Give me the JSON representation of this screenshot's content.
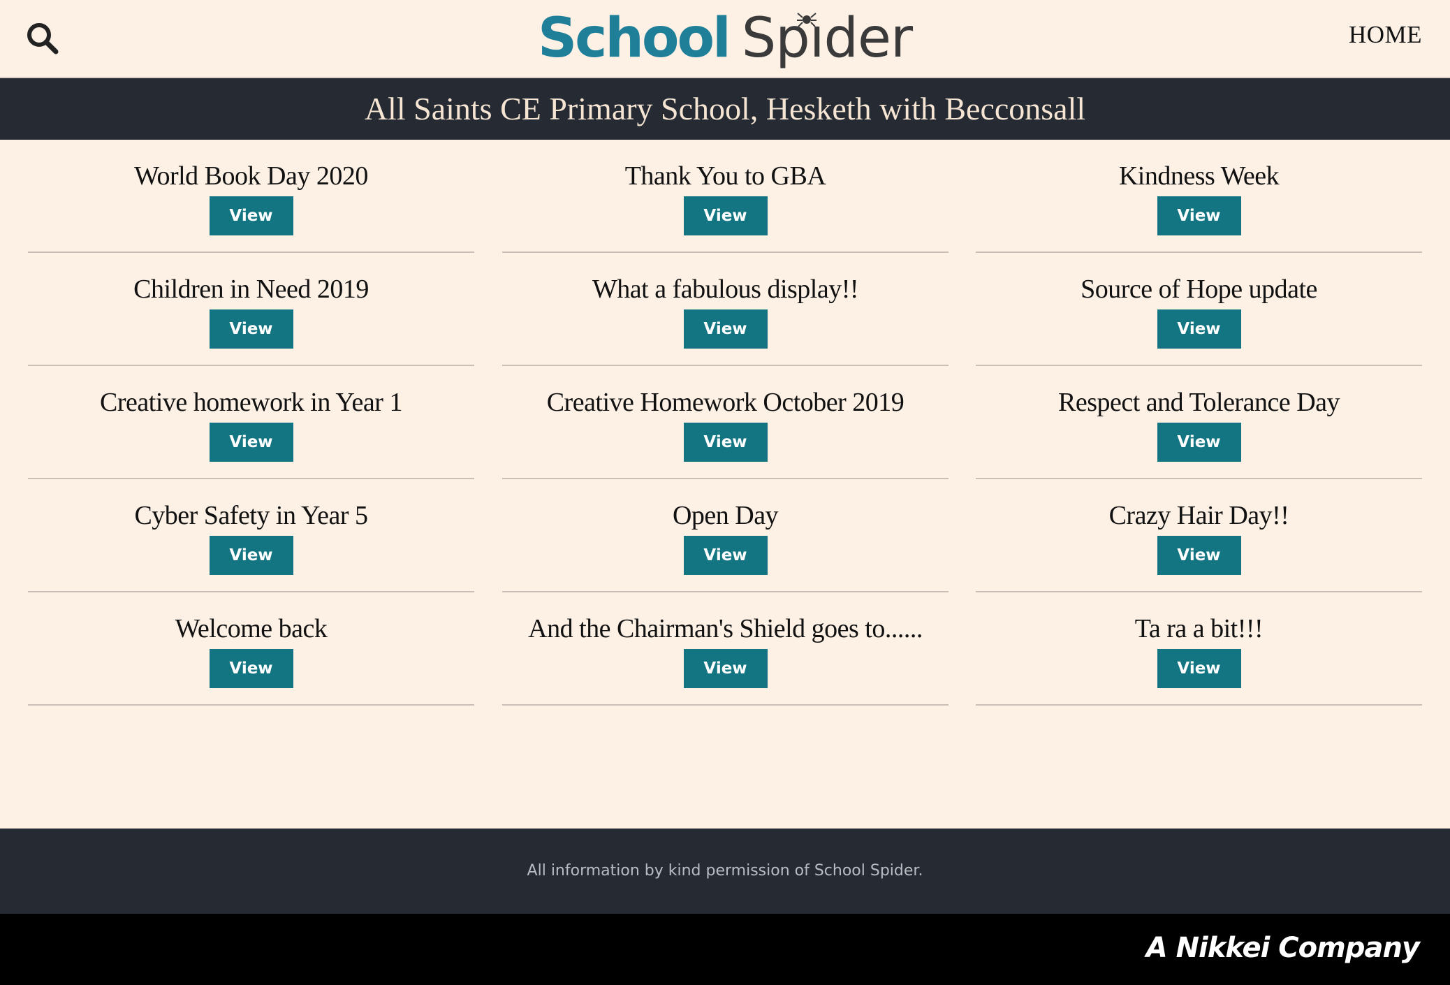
{
  "header": {
    "logo_part1": "School",
    "logo_part2": "Spıder",
    "home_label": "HOME",
    "search_icon": "search-icon"
  },
  "banner": {
    "school_name": "All Saints CE Primary School, Hesketh with Becconsall"
  },
  "posts": [
    {
      "title": "World Book Day 2020",
      "button": "View"
    },
    {
      "title": "Thank You to GBA",
      "button": "View"
    },
    {
      "title": "Kindness Week",
      "button": "View"
    },
    {
      "title": "Children in Need 2019",
      "button": "View"
    },
    {
      "title": "What a fabulous display!!",
      "button": "View"
    },
    {
      "title": "Source of Hope update",
      "button": "View"
    },
    {
      "title": "Creative homework in Year 1",
      "button": "View"
    },
    {
      "title": "Creative Homework October 2019",
      "button": "View"
    },
    {
      "title": "Respect and Tolerance Day",
      "button": "View"
    },
    {
      "title": "Cyber Safety in Year 5",
      "button": "View"
    },
    {
      "title": "Open Day",
      "button": "View"
    },
    {
      "title": "Crazy Hair Day!!",
      "button": "View"
    },
    {
      "title": "Welcome back",
      "button": "View"
    },
    {
      "title": "And the Chairman's Shield goes to......",
      "button": "View"
    },
    {
      "title": "Ta ra a bit!!!",
      "button": "View"
    }
  ],
  "footer": {
    "permission_text": "All information by kind permission of School Spider.",
    "company_text": "A Nikkei Company"
  },
  "colors": {
    "background": "#fdf1e6",
    "dark_bar": "#252a33",
    "button": "#127581",
    "logo_blue": "#1f7f99"
  }
}
